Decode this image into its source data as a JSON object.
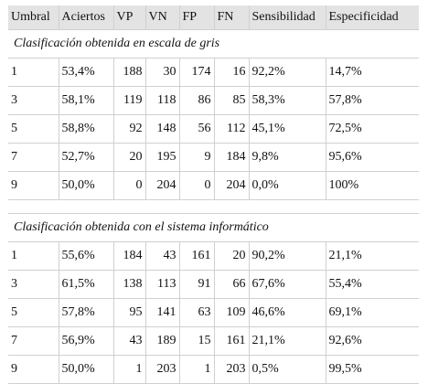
{
  "table": {
    "columns": [
      "Umbral",
      "Aciertos",
      "VP",
      "VN",
      "FP",
      "FN",
      "Sensibilidad",
      "Especificidad"
    ],
    "sections": [
      {
        "title": "Clasificación obtenida en escala de gris",
        "rows": [
          [
            "1",
            "53,4%",
            "188",
            "30",
            "174",
            "16",
            "92,2%",
            "14,7%"
          ],
          [
            "3",
            "58,1%",
            "119",
            "118",
            "86",
            "85",
            "58,3%",
            "57,8%"
          ],
          [
            "5",
            "58,8%",
            "92",
            "148",
            "56",
            "112",
            "45,1%",
            "72,5%"
          ],
          [
            "7",
            "52,7%",
            "20",
            "195",
            "9",
            "184",
            "9,8%",
            "95,6%"
          ],
          [
            "9",
            "50,0%",
            "0",
            "204",
            "0",
            "204",
            "0,0%",
            "100%"
          ]
        ]
      },
      {
        "title": "Clasificación obtenida con el sistema informático",
        "rows": [
          [
            "1",
            "55,6%",
            "184",
            "43",
            "161",
            "20",
            "90,2%",
            "21,1%"
          ],
          [
            "3",
            "61,5%",
            "138",
            "113",
            "91",
            "66",
            "67,6%",
            "55,4%"
          ],
          [
            "5",
            "57,8%",
            "95",
            "141",
            "63",
            "109",
            "46,6%",
            "69,1%"
          ],
          [
            "7",
            "56,9%",
            "43",
            "189",
            "15",
            "161",
            "21,1%",
            "92,6%"
          ],
          [
            "9",
            "50,0%",
            "1",
            "203",
            "1",
            "203",
            "0,5%",
            "99,5%"
          ]
        ]
      }
    ]
  }
}
